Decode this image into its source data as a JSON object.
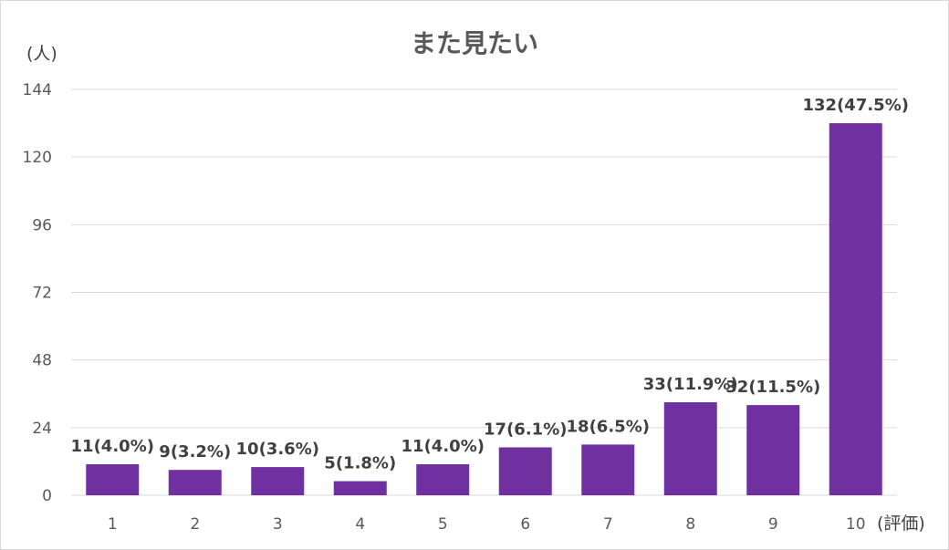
{
  "chart_data": {
    "type": "bar",
    "title": "また見たい",
    "ylabel": "(人)",
    "xlabel": "(評価)",
    "categories": [
      "1",
      "2",
      "3",
      "4",
      "5",
      "6",
      "7",
      "8",
      "9",
      "10"
    ],
    "values": [
      11,
      9,
      10,
      5,
      11,
      17,
      18,
      33,
      32,
      132
    ],
    "data_labels": [
      "11(4.0%)",
      "9(3.2%)",
      "10(3.6%)",
      "5(1.8%)",
      "11(4.0%)",
      "17(6.1%)",
      "18(6.5%)",
      "33(11.9%)",
      "32(11.5%)",
      "132(47.5%)"
    ],
    "ylim": [
      0,
      144
    ],
    "yticks": [
      0,
      24,
      48,
      72,
      96,
      120,
      144
    ],
    "grid": true,
    "legend": "none",
    "colors": {
      "bar": "#7030a0"
    }
  }
}
